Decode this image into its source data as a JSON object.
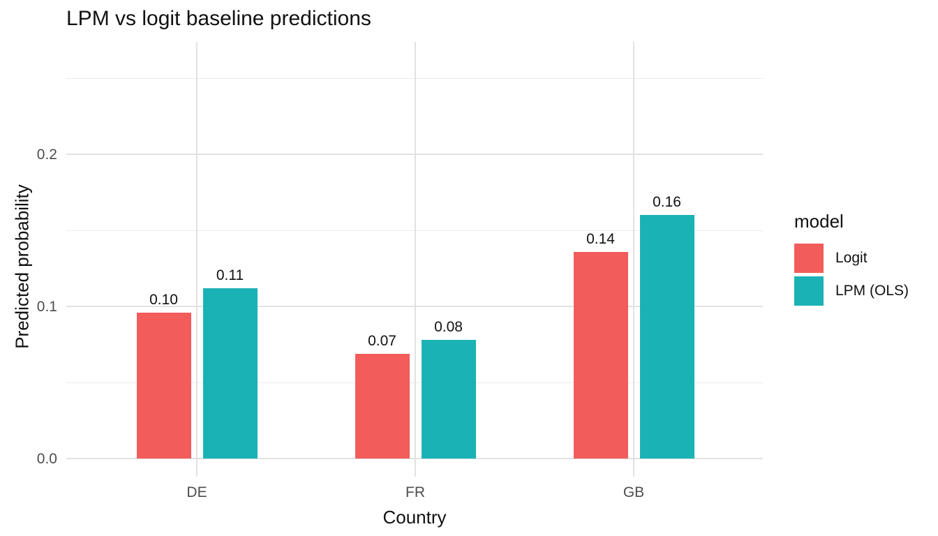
{
  "chart_data": {
    "type": "bar",
    "title": "LPM vs logit baseline predictions",
    "xlabel": "Country",
    "ylabel": "Predicted probability",
    "legend_title": "model",
    "legend_position": "right",
    "categories": [
      "DE",
      "FR",
      "GB"
    ],
    "series": [
      {
        "name": "Logit",
        "color": "#F25C5A",
        "values": [
          0.096,
          0.069,
          0.136
        ],
        "labels": [
          "0.10",
          "0.07",
          "0.14"
        ]
      },
      {
        "name": "LPM (OLS)",
        "color": "#1AB2B5",
        "values": [
          0.112,
          0.078,
          0.16
        ],
        "labels": [
          "0.11",
          "0.08",
          "0.16"
        ]
      }
    ],
    "y_ticks": [
      0.0,
      0.1,
      0.2
    ],
    "y_tick_labels": [
      "0.0",
      "0.1",
      "0.2"
    ],
    "y_minor_ticks": [
      0.05,
      0.15,
      0.25
    ],
    "ylim": [
      -0.012,
      0.274
    ],
    "grid": true,
    "background_color": "#FFFFFF",
    "grid_major_color": "#E2E2E2",
    "grid_minor_color": "#EBEBEB",
    "tick_label_color": "#4D4D4D",
    "text_color": "#111111"
  }
}
